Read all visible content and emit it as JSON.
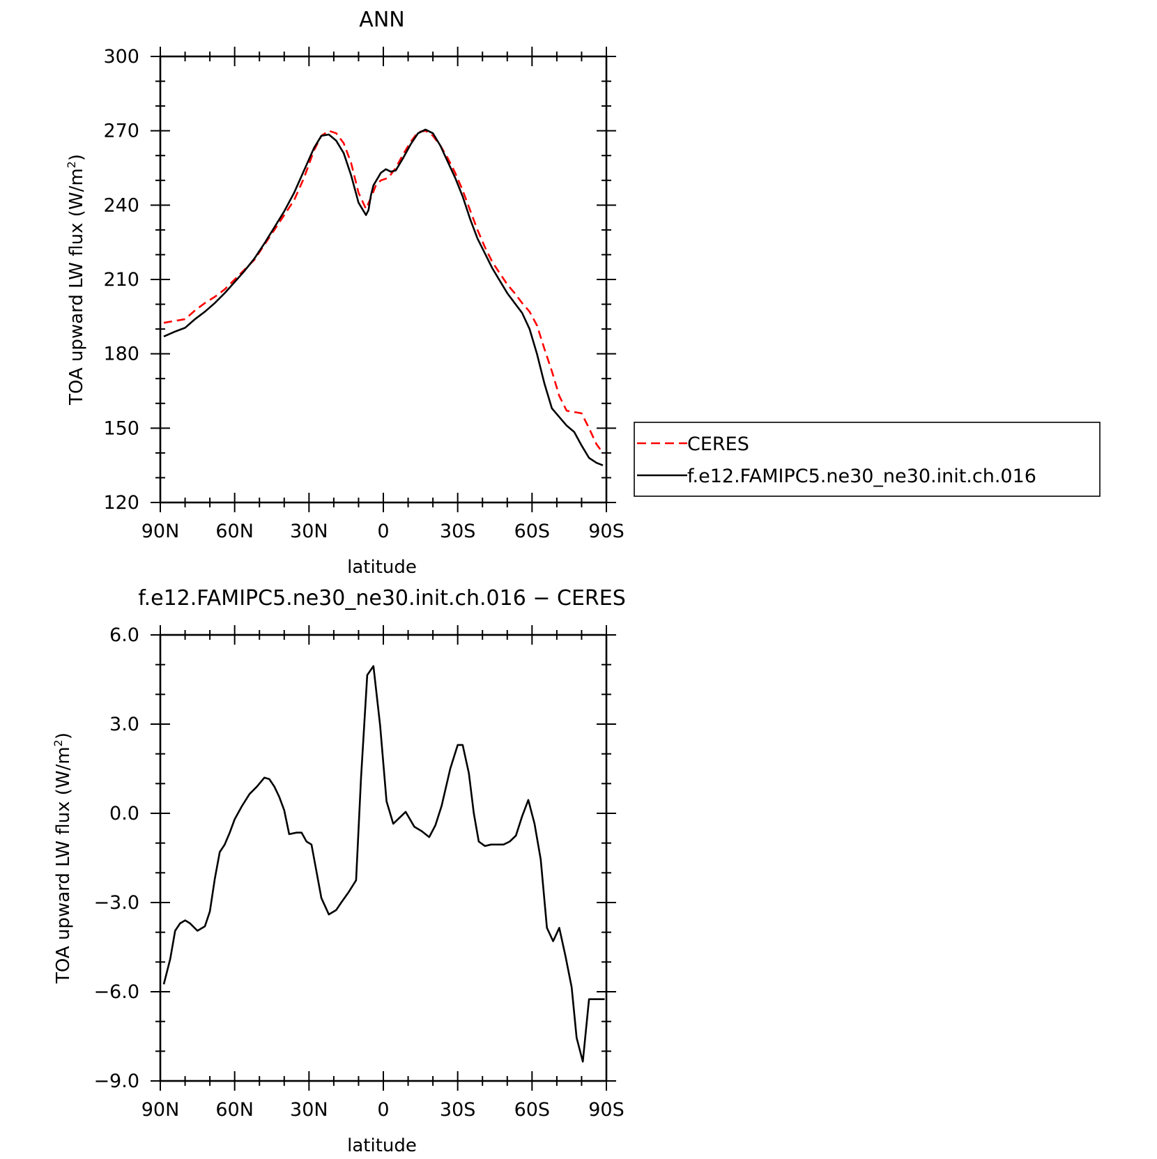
{
  "chart_data": [
    {
      "type": "line",
      "title": "ANN",
      "xlabel": "latitude",
      "ylabel": "TOA upward LW flux (W/m",
      "ylabel_sup": "2",
      "ylabel_close": ")",
      "xlim": [
        90,
        -90
      ],
      "ylim": [
        120,
        300
      ],
      "x_ticks": [
        90,
        60,
        30,
        0,
        -30,
        -60,
        -90
      ],
      "x_tick_labels": [
        "90N",
        "60N",
        "30N",
        "0",
        "30S",
        "60S",
        "90S"
      ],
      "y_ticks": [
        120,
        150,
        180,
        210,
        240,
        270,
        300
      ],
      "y_tick_labels": [
        "120",
        "150",
        "180",
        "210",
        "240",
        "270",
        "300"
      ],
      "legend_position": "right",
      "series": [
        {
          "name": "CERES",
          "color": "#ff0000",
          "dash": "dashed",
          "x": [
            88.6,
            80,
            76,
            72,
            68,
            64,
            60,
            56,
            52,
            48,
            44,
            40,
            36,
            32,
            28,
            25,
            22,
            19,
            16,
            13,
            10,
            7,
            5,
            3,
            1,
            -2,
            -5,
            -8,
            -11,
            -14,
            -17,
            -20,
            -23,
            -26,
            -29,
            -32,
            -35,
            -38,
            -41,
            -44,
            -47,
            -50,
            -53,
            -56,
            -59,
            -62,
            -65,
            -68,
            -71,
            -74,
            -77,
            -80,
            -83,
            -86,
            -88.6
          ],
          "y": [
            192.5,
            194,
            197.5,
            200.5,
            203,
            206,
            210,
            214,
            218,
            224,
            230,
            236,
            242,
            251,
            262,
            268,
            270,
            269,
            265,
            257,
            245,
            238.5,
            243,
            248,
            250,
            251,
            255,
            260.5,
            265.5,
            269.5,
            270,
            268,
            264,
            259,
            253,
            246,
            238,
            230,
            223,
            217,
            212.5,
            208,
            204.5,
            200.5,
            197,
            191.5,
            182,
            173,
            163,
            157,
            156.5,
            156,
            150,
            143.5,
            140
          ]
        },
        {
          "name": "f.e12.FAMIPC5.ne30_ne30.init.ch.016",
          "color": "#000000",
          "dash": "solid",
          "x": [
            88.6,
            84,
            80,
            76,
            72,
            68,
            64,
            60,
            56,
            52,
            48,
            44,
            40,
            36,
            32,
            28,
            25,
            22,
            19,
            16,
            13,
            10,
            7,
            6,
            5,
            4,
            1,
            -1,
            -3,
            -5,
            -8,
            -11,
            -14,
            -17,
            -20,
            -23,
            -26,
            -29,
            -32,
            -35,
            -38,
            -41,
            -44,
            -47,
            -50,
            -53,
            -56,
            -59,
            -62,
            -65,
            -68,
            -71,
            -74,
            -77,
            -80,
            -83,
            -86,
            -88.6
          ],
          "y": [
            187,
            189,
            190.5,
            194,
            197,
            200.5,
            204.5,
            209,
            213.5,
            218.5,
            224.5,
            231,
            237.5,
            245,
            254,
            263,
            268,
            268.5,
            266,
            261,
            252,
            241,
            236,
            238,
            244,
            248,
            253,
            254.5,
            253.5,
            254,
            259,
            264.5,
            269,
            270.5,
            269,
            264,
            257.5,
            251,
            243.5,
            234.5,
            226.5,
            220.5,
            214.5,
            209.5,
            204.5,
            200.5,
            196.5,
            190,
            180,
            168,
            158,
            154.5,
            151,
            148.5,
            143,
            138,
            136,
            135
          ]
        }
      ]
    },
    {
      "type": "line",
      "title": "f.e12.FAMIPC5.ne30_ne30.init.ch.016 − CERES",
      "xlabel": "latitude",
      "ylabel": "TOA upward LW flux (W/m",
      "ylabel_sup": "2",
      "ylabel_close": ")",
      "xlim": [
        90,
        -90
      ],
      "ylim": [
        -9,
        6
      ],
      "x_ticks": [
        90,
        60,
        30,
        0,
        -30,
        -60,
        -90
      ],
      "x_tick_labels": [
        "90N",
        "60N",
        "30N",
        "0",
        "30S",
        "60S",
        "90S"
      ],
      "y_ticks": [
        -9,
        -6,
        -3,
        0,
        3,
        6
      ],
      "y_tick_labels": [
        "−9.0",
        "−6.0",
        "−3.0",
        "0.0",
        "3.0",
        "6.0"
      ],
      "series": [
        {
          "color": "#000000",
          "dash": "solid",
          "x": [
            88.6,
            86,
            84,
            82,
            80,
            78,
            75,
            72,
            70,
            68,
            66,
            64,
            62,
            60,
            57,
            54,
            51,
            48,
            46,
            44,
            42,
            40,
            38,
            35,
            33,
            31,
            29,
            27,
            25,
            22,
            19,
            17,
            14,
            11,
            9,
            6.5,
            4,
            1.3,
            -1.3,
            -4,
            -6.5,
            -9,
            -12.5,
            -15.5,
            -18.5,
            -21,
            -23.5,
            -27,
            -30,
            -32,
            -34.5,
            -36.5,
            -38.5,
            -41,
            -43.5,
            -46,
            -48.5,
            -51,
            -53.5,
            -56,
            -58.5,
            -61,
            -63.5,
            -66,
            -68.5,
            -71,
            -73.5,
            -76,
            -78,
            -80.5,
            -83,
            -85.5,
            -88,
            -89.3
          ],
          "y": [
            -5.75,
            -4.9,
            -3.95,
            -3.7,
            -3.6,
            -3.7,
            -3.95,
            -3.8,
            -3.3,
            -2.2,
            -1.3,
            -1.05,
            -0.65,
            -0.2,
            0.25,
            0.65,
            0.9,
            1.2,
            1.15,
            0.9,
            0.55,
            0.1,
            -0.7,
            -0.65,
            -0.65,
            -0.95,
            -1.05,
            -1.95,
            -2.85,
            -3.4,
            -3.25,
            -3.0,
            -2.65,
            -2.25,
            1.2,
            4.65,
            4.95,
            2.95,
            0.4,
            -0.35,
            -0.15,
            0.05,
            -0.45,
            -0.6,
            -0.8,
            -0.4,
            0.25,
            1.5,
            2.3,
            2.3,
            1.35,
            0.0,
            -0.95,
            -1.1,
            -1.05,
            -1.05,
            -1.05,
            -0.95,
            -0.75,
            -0.1,
            0.45,
            -0.35,
            -1.55,
            -3.85,
            -4.3,
            -3.85,
            -4.8,
            -5.85,
            -7.55,
            -8.35,
            -6.25,
            -6.25,
            -6.25,
            -6.25
          ]
        }
      ]
    }
  ]
}
